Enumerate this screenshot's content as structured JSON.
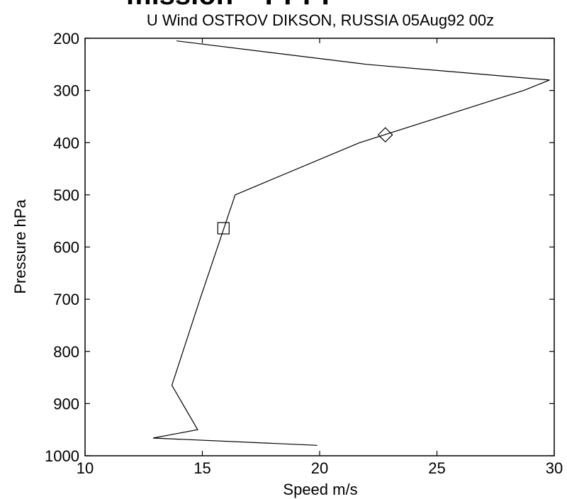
{
  "header_fragment": "mission – PPPP",
  "chart_data": {
    "type": "line",
    "title": "U Wind OSTROV DIKSON, RUSSIA 05Aug92 00z",
    "xlabel": "Speed m/s",
    "ylabel": "Pressure hPa",
    "xlim": [
      10,
      30
    ],
    "ylim": [
      200,
      1000
    ],
    "y_reversed": true,
    "grid": false,
    "x_ticks": [
      10,
      15,
      20,
      25,
      30
    ],
    "y_ticks": [
      200,
      300,
      400,
      500,
      600,
      700,
      800,
      900,
      1000
    ],
    "series": [
      {
        "x": [
          19.9,
          12.9,
          14.8,
          13.7,
          14.9,
          16.4,
          21.7,
          28.7,
          29.8,
          22.0,
          13.9
        ],
        "y": [
          980,
          966,
          950,
          865,
          700,
          500,
          400,
          300,
          280,
          250,
          205
        ]
      }
    ],
    "markers": [
      {
        "shape": "diamond",
        "x": 22.8,
        "y": 385
      },
      {
        "shape": "square",
        "x": 15.9,
        "y": 564
      }
    ]
  }
}
